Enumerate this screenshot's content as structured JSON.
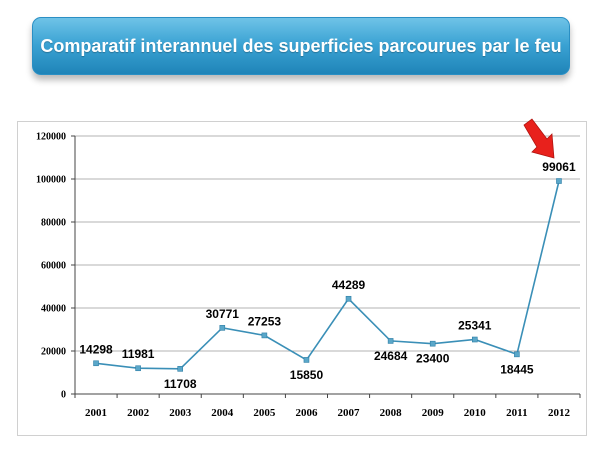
{
  "title": "Comparatif interannuel des superficies parcourues par le feu",
  "colors": {
    "line": "#3a8fb7",
    "marker": "#5aa7c9",
    "arrow": "#e8211c",
    "banner": "#3aa2d3"
  },
  "annotation": {
    "icon": "red-arrow-icon",
    "points_to": "2012"
  },
  "chart_data": {
    "type": "line",
    "categories": [
      "2001",
      "2002",
      "2003",
      "2004",
      "2005",
      "2006",
      "2007",
      "2008",
      "2009",
      "2010",
      "2011",
      "2012"
    ],
    "series": [
      {
        "values": [
          14298,
          11981,
          11708,
          30771,
          27253,
          15850,
          44289,
          24684,
          23400,
          25341,
          18445,
          99061
        ]
      }
    ],
    "data_labels": [
      "14298",
      "11981",
      "11708",
      "30771",
      "27253",
      "15850",
      "44289",
      "24684",
      "23400",
      "25341",
      "18445",
      "99061"
    ],
    "ylim": [
      0,
      120000
    ],
    "yticks": [
      0,
      20000,
      40000,
      60000,
      80000,
      100000,
      120000
    ],
    "ytick_labels": [
      "0",
      "20000",
      "40000",
      "60000",
      "80000",
      "100000",
      "120000"
    ],
    "grid": "horizontal",
    "legend": "none"
  }
}
